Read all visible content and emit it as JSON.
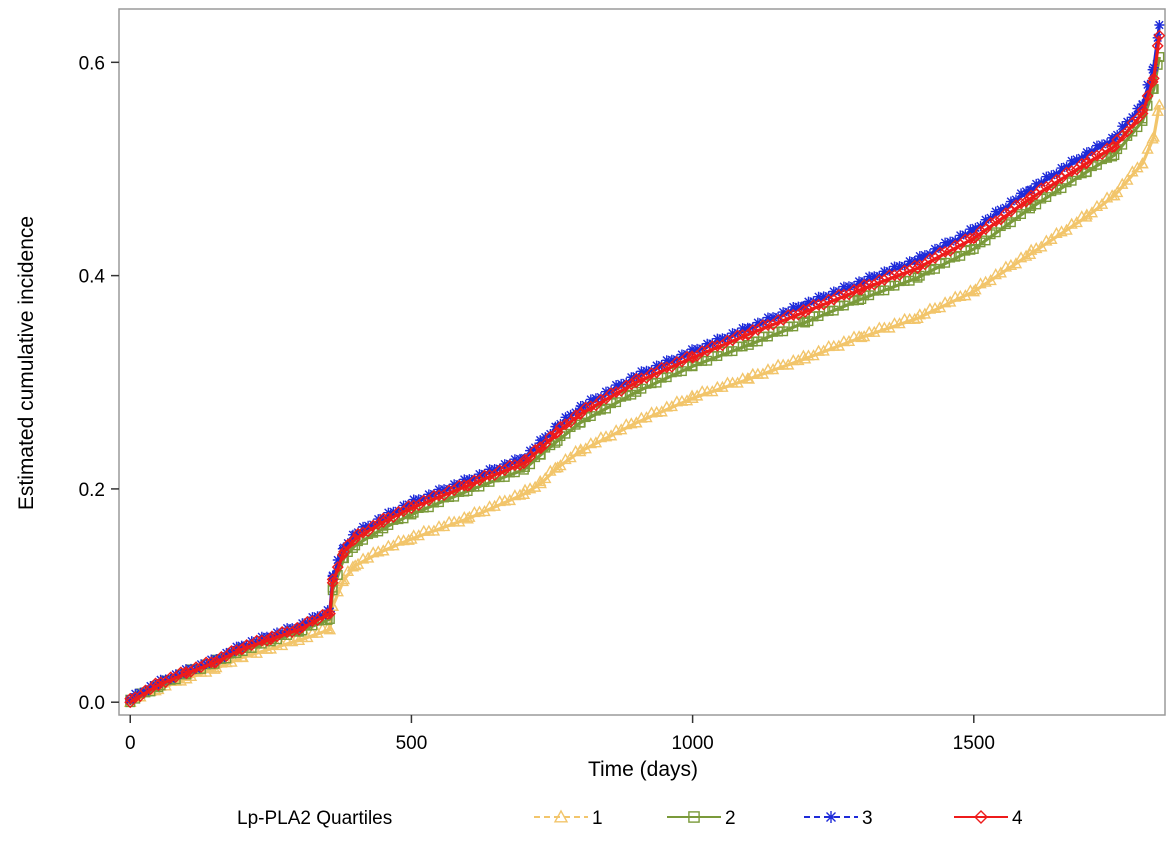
{
  "chart_data": {
    "type": "line",
    "xlabel": "Time (days)",
    "ylabel": "Estimated cumulative incidence",
    "xlim": [
      -20,
      1840
    ],
    "ylim": [
      -0.012,
      0.65
    ],
    "xticks": [
      0,
      500,
      1000,
      1500
    ],
    "yticks": [
      0.0,
      0.2,
      0.4,
      0.6
    ],
    "xtick_labels": [
      "0",
      "500",
      "1000",
      "1500"
    ],
    "ytick_labels": [
      "0.0",
      "0.2",
      "0.4",
      "0.6"
    ],
    "grid": false,
    "legend": {
      "title": "Lp-PLA2 Quartiles",
      "placement": "bottom"
    },
    "series": [
      {
        "name": "1",
        "color": "#F2C56B",
        "marker": "triangle",
        "dash": true,
        "points": [
          [
            0,
            0.0
          ],
          [
            50,
            0.012
          ],
          [
            100,
            0.022
          ],
          [
            150,
            0.031
          ],
          [
            200,
            0.042
          ],
          [
            250,
            0.05
          ],
          [
            300,
            0.058
          ],
          [
            355,
            0.068
          ],
          [
            360,
            0.09
          ],
          [
            380,
            0.115
          ],
          [
            400,
            0.128
          ],
          [
            450,
            0.142
          ],
          [
            500,
            0.153
          ],
          [
            600,
            0.172
          ],
          [
            700,
            0.195
          ],
          [
            730,
            0.205
          ],
          [
            760,
            0.22
          ],
          [
            800,
            0.235
          ],
          [
            900,
            0.262
          ],
          [
            1000,
            0.285
          ],
          [
            1100,
            0.303
          ],
          [
            1200,
            0.322
          ],
          [
            1300,
            0.342
          ],
          [
            1400,
            0.36
          ],
          [
            1500,
            0.385
          ],
          [
            1600,
            0.42
          ],
          [
            1700,
            0.455
          ],
          [
            1750,
            0.475
          ],
          [
            1800,
            0.505
          ],
          [
            1820,
            0.53
          ],
          [
            1830,
            0.56
          ]
        ]
      },
      {
        "name": "2",
        "color": "#7A9A3A",
        "marker": "square",
        "dash": false,
        "points": [
          [
            0,
            0.0
          ],
          [
            50,
            0.014
          ],
          [
            100,
            0.026
          ],
          [
            150,
            0.036
          ],
          [
            200,
            0.048
          ],
          [
            250,
            0.057
          ],
          [
            300,
            0.066
          ],
          [
            355,
            0.078
          ],
          [
            360,
            0.105
          ],
          [
            380,
            0.135
          ],
          [
            400,
            0.147
          ],
          [
            450,
            0.163
          ],
          [
            500,
            0.176
          ],
          [
            600,
            0.198
          ],
          [
            700,
            0.218
          ],
          [
            730,
            0.232
          ],
          [
            760,
            0.245
          ],
          [
            800,
            0.262
          ],
          [
            900,
            0.291
          ],
          [
            1000,
            0.315
          ],
          [
            1100,
            0.335
          ],
          [
            1200,
            0.356
          ],
          [
            1300,
            0.378
          ],
          [
            1400,
            0.398
          ],
          [
            1500,
            0.425
          ],
          [
            1600,
            0.463
          ],
          [
            1700,
            0.497
          ],
          [
            1750,
            0.513
          ],
          [
            1800,
            0.545
          ],
          [
            1820,
            0.575
          ],
          [
            1830,
            0.605
          ]
        ]
      },
      {
        "name": "3",
        "color": "#1E2BD9",
        "marker": "asterisk",
        "dash": true,
        "points": [
          [
            0,
            0.002
          ],
          [
            50,
            0.017
          ],
          [
            100,
            0.028
          ],
          [
            150,
            0.038
          ],
          [
            200,
            0.052
          ],
          [
            250,
            0.061
          ],
          [
            300,
            0.07
          ],
          [
            355,
            0.085
          ],
          [
            360,
            0.118
          ],
          [
            380,
            0.145
          ],
          [
            400,
            0.157
          ],
          [
            450,
            0.172
          ],
          [
            500,
            0.186
          ],
          [
            600,
            0.207
          ],
          [
            700,
            0.228
          ],
          [
            730,
            0.243
          ],
          [
            760,
            0.258
          ],
          [
            800,
            0.275
          ],
          [
            900,
            0.305
          ],
          [
            1000,
            0.328
          ],
          [
            1100,
            0.35
          ],
          [
            1200,
            0.372
          ],
          [
            1300,
            0.393
          ],
          [
            1400,
            0.414
          ],
          [
            1500,
            0.442
          ],
          [
            1600,
            0.48
          ],
          [
            1700,
            0.513
          ],
          [
            1750,
            0.528
          ],
          [
            1800,
            0.56
          ],
          [
            1820,
            0.595
          ],
          [
            1830,
            0.635
          ]
        ]
      },
      {
        "name": "4",
        "color": "#EE1B1B",
        "marker": "diamond",
        "dash": false,
        "points": [
          [
            0,
            0.0
          ],
          [
            50,
            0.016
          ],
          [
            100,
            0.027
          ],
          [
            150,
            0.037
          ],
          [
            200,
            0.05
          ],
          [
            250,
            0.059
          ],
          [
            300,
            0.068
          ],
          [
            355,
            0.083
          ],
          [
            360,
            0.112
          ],
          [
            380,
            0.141
          ],
          [
            400,
            0.153
          ],
          [
            450,
            0.169
          ],
          [
            500,
            0.182
          ],
          [
            600,
            0.203
          ],
          [
            700,
            0.224
          ],
          [
            730,
            0.238
          ],
          [
            760,
            0.253
          ],
          [
            800,
            0.27
          ],
          [
            900,
            0.3
          ],
          [
            1000,
            0.323
          ],
          [
            1100,
            0.345
          ],
          [
            1200,
            0.366
          ],
          [
            1300,
            0.387
          ],
          [
            1400,
            0.407
          ],
          [
            1500,
            0.435
          ],
          [
            1600,
            0.472
          ],
          [
            1700,
            0.505
          ],
          [
            1750,
            0.521
          ],
          [
            1800,
            0.552
          ],
          [
            1820,
            0.585
          ],
          [
            1830,
            0.625
          ]
        ]
      }
    ]
  }
}
